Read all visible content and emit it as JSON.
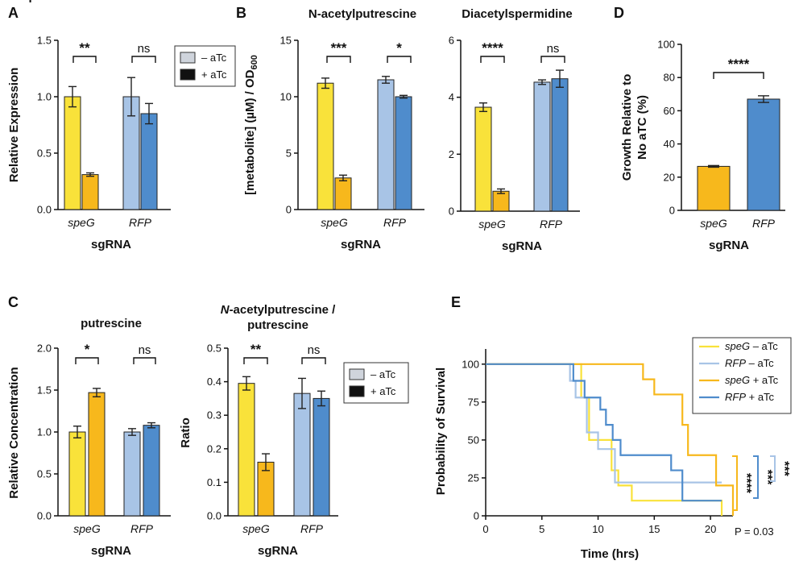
{
  "colors": {
    "speg_minus": "#f9e23a",
    "speg_plus": "#f7b81c",
    "rfp_minus": "#a8c4e6",
    "rfp_plus": "#4f8ccc",
    "axis": "#111111"
  },
  "panels": {
    "A": "A",
    "B": "B",
    "C": "C",
    "D": "D",
    "E": "E"
  },
  "legend_bar": {
    "minus": "– aTc",
    "plus": "+ aTc"
  },
  "chart_data": [
    {
      "id": "A",
      "type": "bar",
      "title": "",
      "ylabel": "Relative Expression",
      "xlabel": "sgRNA",
      "ylim": [
        0,
        1.5
      ],
      "yticks": [
        "0.0",
        "0.5",
        "1.0",
        "1.5"
      ],
      "categories": [
        "speG",
        "RFP"
      ],
      "series": [
        {
          "name": "– aTc",
          "values": [
            1.0,
            1.0
          ],
          "errors": [
            0.09,
            0.17
          ]
        },
        {
          "name": "+ aTc",
          "values": [
            0.31,
            0.85
          ],
          "errors": [
            0.015,
            0.09
          ]
        }
      ],
      "significance": [
        "**",
        "ns"
      ]
    },
    {
      "id": "B1",
      "type": "bar",
      "title": "N-acetylputrescine",
      "ylabel": "[metabolite] (µM) / OD600",
      "xlabel": "sgRNA",
      "ylim": [
        0,
        15
      ],
      "yticks": [
        "0",
        "5",
        "10",
        "15"
      ],
      "categories": [
        "speG",
        "RFP"
      ],
      "series": [
        {
          "name": "– aTc",
          "values": [
            11.2,
            11.5
          ],
          "errors": [
            0.45,
            0.3
          ]
        },
        {
          "name": "+ aTc",
          "values": [
            2.8,
            10.0
          ],
          "errors": [
            0.25,
            0.12
          ]
        }
      ],
      "significance": [
        "***",
        "*"
      ]
    },
    {
      "id": "B2",
      "type": "bar",
      "title": "Diacetylspermidine",
      "ylabel": "",
      "xlabel": "sgRNA",
      "ylim": [
        0,
        6
      ],
      "yticks": [
        "0",
        "2",
        "4",
        "6"
      ],
      "categories": [
        "speG",
        "RFP"
      ],
      "series": [
        {
          "name": "– aTc",
          "values": [
            3.65,
            4.53
          ],
          "errors": [
            0.15,
            0.08
          ]
        },
        {
          "name": "+ aTc",
          "values": [
            0.7,
            4.65
          ],
          "errors": [
            0.08,
            0.3
          ]
        }
      ],
      "significance": [
        "****",
        "ns"
      ]
    },
    {
      "id": "D",
      "type": "bar",
      "title": "",
      "ylabel": "Growth Relative to No aTC (%)",
      "xlabel": "sgRNA",
      "ylim": [
        0,
        100
      ],
      "yticks": [
        "0",
        "20",
        "40",
        "60",
        "80",
        "100"
      ],
      "categories": [
        "speG",
        "RFP"
      ],
      "values": [
        26.5,
        67.0
      ],
      "errors": [
        0.5,
        2.0
      ],
      "significance": [
        "****"
      ]
    },
    {
      "id": "C1",
      "type": "bar",
      "title": "putrescine",
      "ylabel": "Relative Concentration",
      "xlabel": "sgRNA",
      "ylim": [
        0,
        2.0
      ],
      "yticks": [
        "0.0",
        "0.5",
        "1.0",
        "1.5",
        "2.0"
      ],
      "categories": [
        "speG",
        "RFP"
      ],
      "series": [
        {
          "name": "– aTc",
          "values": [
            1.0,
            1.0
          ],
          "errors": [
            0.07,
            0.04
          ]
        },
        {
          "name": "+ aTc",
          "values": [
            1.47,
            1.08
          ],
          "errors": [
            0.05,
            0.03
          ]
        }
      ],
      "significance": [
        "*",
        "ns"
      ]
    },
    {
      "id": "C2",
      "type": "bar",
      "title": "N-acetylputrescine / putrescine",
      "ylabel": "Ratio",
      "xlabel": "sgRNA",
      "ylim": [
        0,
        0.5
      ],
      "yticks": [
        "0.0",
        "0.1",
        "0.2",
        "0.3",
        "0.4",
        "0.5"
      ],
      "categories": [
        "speG",
        "RFP"
      ],
      "series": [
        {
          "name": "– aTc",
          "values": [
            0.395,
            0.365
          ],
          "errors": [
            0.02,
            0.045
          ]
        },
        {
          "name": "+ aTc",
          "values": [
            0.16,
            0.35
          ],
          "errors": [
            0.025,
            0.022
          ]
        }
      ],
      "significance": [
        "**",
        "ns"
      ]
    },
    {
      "id": "E",
      "type": "line",
      "title": "",
      "ylabel": "Probability of Survival",
      "xlabel": "Time (hrs)",
      "xlim": [
        0,
        22
      ],
      "ylim": [
        0,
        110
      ],
      "xticks": [
        "0",
        "5",
        "10",
        "15",
        "20"
      ],
      "yticks": [
        "0",
        "25",
        "50",
        "75",
        "100"
      ],
      "series": [
        {
          "name": "speG – aTc",
          "x": [
            0,
            8.5,
            9.2,
            11.2,
            11.8,
            13.0,
            21.0
          ],
          "y": [
            100,
            78,
            50,
            30,
            20,
            10,
            0
          ]
        },
        {
          "name": "RFP – aTc",
          "x": [
            0,
            7.5,
            8.0,
            9.0,
            10.0,
            11.5,
            21.0
          ],
          "y": [
            100,
            89,
            78,
            55,
            44,
            22,
            22
          ]
        },
        {
          "name": "speG + aTc",
          "x": [
            0,
            14.0,
            15.0,
            17.5,
            18.0,
            20.5,
            22.0
          ],
          "y": [
            100,
            90,
            80,
            60,
            40,
            20,
            0
          ]
        },
        {
          "name": "RFP + aTc",
          "x": [
            0,
            7.8,
            8.8,
            10.2,
            10.7,
            11.3,
            12.0,
            16.5,
            17.5,
            21.0
          ],
          "y": [
            100,
            89,
            78,
            70,
            60,
            50,
            40,
            30,
            10,
            10
          ]
        }
      ],
      "annotations": [
        "****",
        "***",
        "***",
        "P = 0.03"
      ]
    }
  ]
}
